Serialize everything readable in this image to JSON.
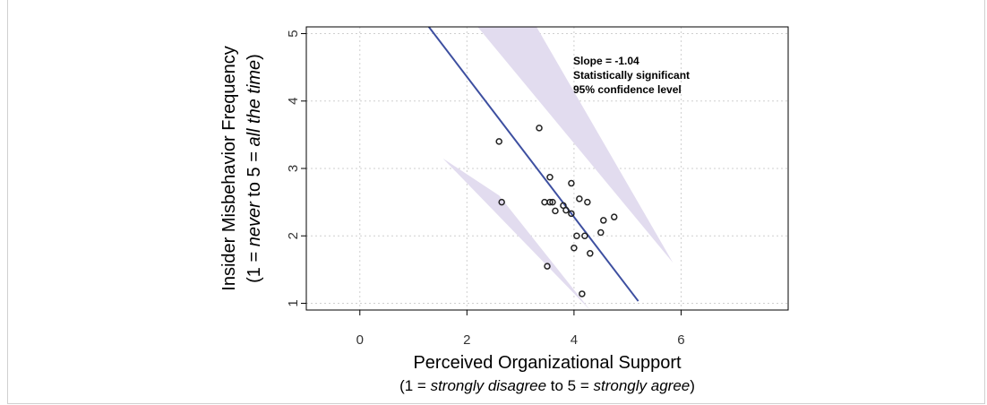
{
  "chart_data": {
    "type": "scatter",
    "xlabel": "Perceived Organizational Support",
    "xlabel_note": {
      "prefix": "(1 = ",
      "low": "strongly disagree",
      "mid": " to 5 = ",
      "high": "strongly agree",
      "suffix": ")"
    },
    "ylabel": "Insider Misbehavior Frequency",
    "ylabel_note": {
      "prefix": "(1 = ",
      "low": "never",
      "mid": " to 5 = ",
      "high": "all the time",
      "suffix": ")"
    },
    "xlim": [
      -1.0,
      8.0
    ],
    "ylim": [
      0.9,
      5.1
    ],
    "xticks": [
      0,
      2,
      4,
      6
    ],
    "yticks": [
      1,
      2,
      3,
      4,
      5
    ],
    "grid": true,
    "annotation": [
      "Slope = -1.04",
      "Statistically significant",
      "95% confidence level"
    ],
    "regression": {
      "slope": -1.04,
      "intercept": 6.44,
      "x_range": [
        1.25,
        5.2
      ]
    },
    "confidence_band": {
      "upper": [
        [
          2.2,
          5.1
        ],
        [
          3.3,
          5.1
        ],
        [
          5.85,
          1.6
        ]
      ],
      "lower": [
        [
          1.55,
          3.15
        ],
        [
          2.6,
          2.6
        ],
        [
          4.3,
          0.9
        ]
      ]
    },
    "points": [
      {
        "x": 2.6,
        "y": 3.4
      },
      {
        "x": 2.65,
        "y": 2.5
      },
      {
        "x": 3.35,
        "y": 3.6
      },
      {
        "x": 3.45,
        "y": 2.5
      },
      {
        "x": 3.5,
        "y": 1.55
      },
      {
        "x": 3.55,
        "y": 2.5
      },
      {
        "x": 3.55,
        "y": 2.87
      },
      {
        "x": 3.6,
        "y": 2.5
      },
      {
        "x": 3.65,
        "y": 2.37
      },
      {
        "x": 3.8,
        "y": 2.45
      },
      {
        "x": 3.85,
        "y": 2.38
      },
      {
        "x": 3.95,
        "y": 2.78
      },
      {
        "x": 3.95,
        "y": 2.33
      },
      {
        "x": 4.0,
        "y": 1.82
      },
      {
        "x": 4.05,
        "y": 2.0
      },
      {
        "x": 4.1,
        "y": 2.55
      },
      {
        "x": 4.15,
        "y": 1.14
      },
      {
        "x": 4.2,
        "y": 2.0
      },
      {
        "x": 4.25,
        "y": 2.5
      },
      {
        "x": 4.3,
        "y": 1.74
      },
      {
        "x": 4.5,
        "y": 2.05
      },
      {
        "x": 4.55,
        "y": 2.23
      },
      {
        "x": 4.75,
        "y": 2.28
      }
    ],
    "colors": {
      "line": "#3d4fa0",
      "band": "#e2dcef",
      "points": "#222222",
      "grid": "#cfcfcf"
    }
  }
}
